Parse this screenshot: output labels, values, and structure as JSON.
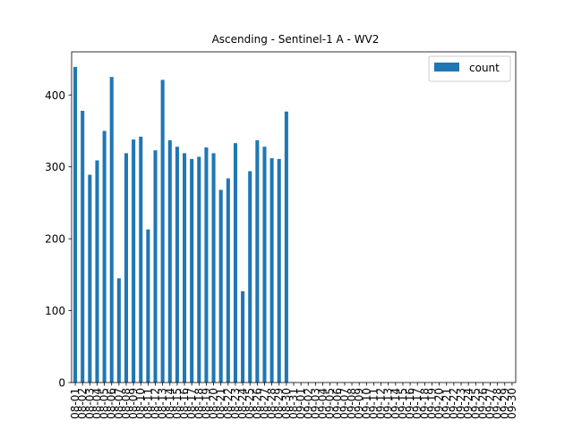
{
  "chart_data": {
    "type": "bar",
    "title": "Ascending - Sentinel-1 A - WV2",
    "xlabel": "",
    "ylabel": "",
    "ylim": [
      0,
      460
    ],
    "yticks": [
      0,
      100,
      200,
      300,
      400
    ],
    "grid": false,
    "legend": {
      "placement": "top-right",
      "entries": [
        "count"
      ]
    },
    "categories": [
      "08-01",
      "08-02",
      "08-03",
      "08-04",
      "08-05",
      "08-06",
      "08-07",
      "08-08",
      "08-09",
      "08-10",
      "08-11",
      "08-12",
      "08-13",
      "08-14",
      "08-15",
      "08-16",
      "08-17",
      "08-18",
      "08-19",
      "08-20",
      "08-21",
      "08-22",
      "08-23",
      "08-24",
      "08-25",
      "08-26",
      "08-27",
      "08-28",
      "08-29",
      "08-30",
      "08-31",
      "09-01",
      "09-02",
      "09-03",
      "09-04",
      "09-05",
      "09-06",
      "09-07",
      "09-08",
      "09-09",
      "09-10",
      "09-11",
      "09-12",
      "09-13",
      "09-14",
      "09-15",
      "09-16",
      "09-17",
      "09-18",
      "09-19",
      "09-20",
      "09-21",
      "09-22",
      "09-23",
      "09-24",
      "09-25",
      "09-26",
      "09-27",
      "09-28",
      "09-29",
      "09-30"
    ],
    "series": [
      {
        "name": "count",
        "color": "#1f77b4",
        "values": [
          439,
          378,
          289,
          309,
          350,
          425,
          145,
          319,
          338,
          342,
          213,
          323,
          421,
          337,
          328,
          319,
          311,
          314,
          327,
          319,
          268,
          284,
          333,
          127,
          294,
          337,
          328,
          312,
          311,
          377,
          0,
          0,
          0,
          0,
          0,
          0,
          0,
          0,
          0,
          0,
          0,
          0,
          0,
          0,
          0,
          0,
          0,
          0,
          0,
          0,
          0,
          0,
          0,
          0,
          0,
          0,
          0,
          0,
          0,
          0,
          0
        ]
      }
    ]
  }
}
